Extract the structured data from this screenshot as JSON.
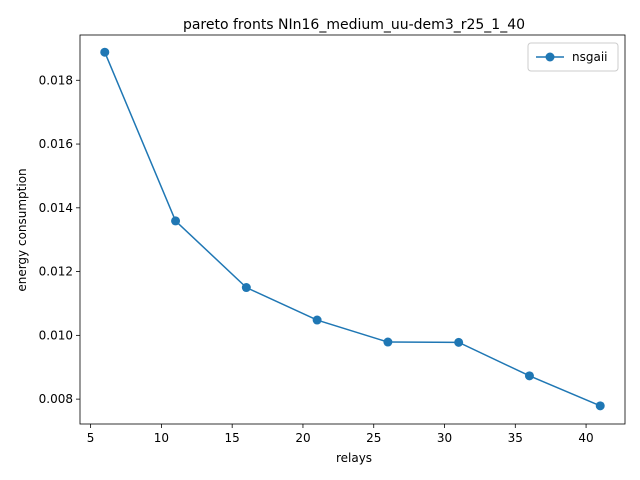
{
  "chart_data": {
    "type": "line",
    "title": "pareto fronts NIn16_medium_uu-dem3_r25_1_40",
    "xlabel": "relays",
    "ylabel": "energy consumption",
    "xlim": [
      4.25,
      42.75
    ],
    "ylim": [
      0.00722,
      0.01942
    ],
    "xticks": [
      5,
      10,
      15,
      20,
      25,
      30,
      35,
      40
    ],
    "xtick_labels": [
      "5",
      "10",
      "15",
      "20",
      "25",
      "30",
      "35",
      "40"
    ],
    "yticks": [
      0.008,
      0.01,
      0.012,
      0.014,
      0.016,
      0.018
    ],
    "ytick_labels": [
      "0.008",
      "0.010",
      "0.012",
      "0.014",
      "0.016",
      "0.018"
    ],
    "grid": false,
    "legend_position": "top-right",
    "series": [
      {
        "name": "nsgaii",
        "color": "#1f77b4",
        "marker": "circle",
        "x": [
          6,
          11,
          16,
          21,
          26,
          31,
          36,
          41
        ],
        "y": [
          0.01888,
          0.01359,
          0.0115,
          0.01048,
          0.00979,
          0.00978,
          0.00873,
          0.00779
        ]
      }
    ]
  }
}
